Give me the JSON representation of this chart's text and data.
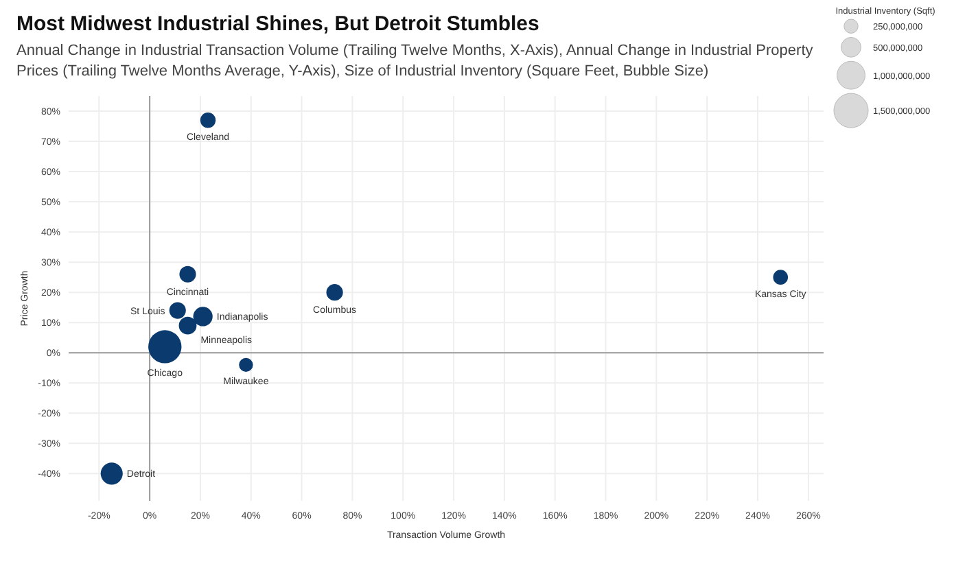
{
  "chart_data": {
    "type": "bubble",
    "title": "Most Midwest Industrial Shines, But Detroit Stumbles",
    "subtitle": "Annual Change in Industrial Transaction Volume (Trailing Twelve Months, X-Axis), Annual Change in Industrial Property Prices (Trailing Twelve Months Average, Y-Axis), Size of Industrial Inventory (Square Feet, Bubble Size)",
    "xlabel": "Transaction Volume Growth",
    "ylabel": "Price Growth",
    "legend_title": "Industrial Inventory (Sqft)",
    "size_legend": [
      {
        "value": 250000000,
        "label": "250,000,000"
      },
      {
        "value": 500000000,
        "label": "500,000,000"
      },
      {
        "value": 1000000000,
        "label": "1,000,000,000"
      },
      {
        "value": 1500000000,
        "label": "1,500,000,000"
      }
    ],
    "grid": true,
    "marker": "circle",
    "xlim": [
      -32,
      266
    ],
    "ylim": [
      -49,
      85
    ],
    "xticks": [
      {
        "value": -20,
        "label": "-20%"
      },
      {
        "value": 0,
        "label": "0%"
      },
      {
        "value": 20,
        "label": "20%"
      },
      {
        "value": 40,
        "label": "40%"
      },
      {
        "value": 60,
        "label": "60%"
      },
      {
        "value": 80,
        "label": "80%"
      },
      {
        "value": 100,
        "label": "100%"
      },
      {
        "value": 120,
        "label": "120%"
      },
      {
        "value": 140,
        "label": "140%"
      },
      {
        "value": 160,
        "label": "160%"
      },
      {
        "value": 180,
        "label": "180%"
      },
      {
        "value": 200,
        "label": "200%"
      },
      {
        "value": 220,
        "label": "220%"
      },
      {
        "value": 240,
        "label": "240%"
      },
      {
        "value": 260,
        "label": "260%"
      }
    ],
    "yticks": [
      {
        "value": -40,
        "label": "-40%"
      },
      {
        "value": -30,
        "label": "-30%"
      },
      {
        "value": -20,
        "label": "-20%"
      },
      {
        "value": -10,
        "label": "-10%"
      },
      {
        "value": 0,
        "label": "0%"
      },
      {
        "value": 10,
        "label": "10%"
      },
      {
        "value": 20,
        "label": "20%"
      },
      {
        "value": 30,
        "label": "30%"
      },
      {
        "value": 40,
        "label": "40%"
      },
      {
        "value": 50,
        "label": "50%"
      },
      {
        "value": 60,
        "label": "60%"
      },
      {
        "value": 70,
        "label": "70%"
      },
      {
        "value": 80,
        "label": "80%"
      }
    ],
    "series": [
      {
        "name": "Cleveland",
        "color": "#0b3b6e",
        "x": [
          23
        ],
        "values": [
          77
        ],
        "sizes": [
          300000000
        ]
      },
      {
        "name": "Cincinnati",
        "color": "#0b3b6e",
        "x": [
          15
        ],
        "values": [
          26
        ],
        "sizes": [
          350000000
        ]
      },
      {
        "name": "St Louis",
        "color": "#0b3b6e",
        "x": [
          11
        ],
        "values": [
          14
        ],
        "sizes": [
          350000000
        ]
      },
      {
        "name": "Indianapolis",
        "color": "#0b3b6e",
        "x": [
          21
        ],
        "values": [
          12
        ],
        "sizes": [
          480000000
        ]
      },
      {
        "name": "Minneapolis",
        "color": "#0b3b6e",
        "x": [
          15
        ],
        "values": [
          9
        ],
        "sizes": [
          400000000
        ]
      },
      {
        "name": "Chicago",
        "color": "#0b3b6e",
        "x": [
          6
        ],
        "values": [
          2
        ],
        "sizes": [
          1400000000
        ]
      },
      {
        "name": "Milwaukee",
        "color": "#0b3b6e",
        "x": [
          38
        ],
        "values": [
          -4
        ],
        "sizes": [
          250000000
        ]
      },
      {
        "name": "Columbus",
        "color": "#0b3b6e",
        "x": [
          73
        ],
        "values": [
          20
        ],
        "sizes": [
          350000000
        ]
      },
      {
        "name": "Kansas City",
        "color": "#0b3b6e",
        "x": [
          249
        ],
        "values": [
          25
        ],
        "sizes": [
          280000000
        ]
      },
      {
        "name": "Detroit",
        "color": "#0b3b6e",
        "x": [
          -15
        ],
        "values": [
          -40
        ],
        "sizes": [
          620000000
        ]
      }
    ]
  }
}
